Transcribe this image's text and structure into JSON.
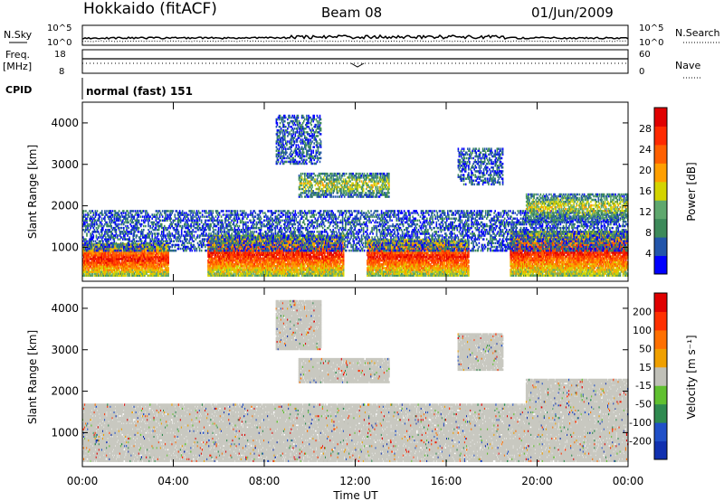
{
  "header": {
    "station": "Hokkaido (fitACF)",
    "beam": "Beam 08",
    "date": "01/Jun/2009"
  },
  "top_panels": {
    "nsky_label": "N.Sky",
    "nsky_ticks": [
      "10^5",
      "10^0"
    ],
    "nsearch_label": "N.Search",
    "nsearch_ticks": [
      "10^5",
      "10^0"
    ],
    "freq_label_1": "Freq.",
    "freq_label_2": "[MHz]",
    "freq_ticks": [
      "18",
      "8"
    ],
    "nave_label": "Nave",
    "nave_ticks": [
      "60",
      "0"
    ],
    "cpid_label": "CPID",
    "cpid_value": "normal (fast) 151"
  },
  "colors": {
    "power_scale": [
      "#0000ff",
      "#2255aa",
      "#3d8a5a",
      "#5fa86e",
      "#d4d400",
      "#ff9f00",
      "#ff6000",
      "#ff2a00",
      "#e00000"
    ],
    "velocity_scale": [
      "#1030b0",
      "#2050c8",
      "#2f8a50",
      "#60c030",
      "#c0c0b8",
      "#f0a000",
      "#ff7000",
      "#ff3000",
      "#e00000"
    ],
    "ground_scatter": "#c8c8c0"
  },
  "chart_data": [
    {
      "type": "heatmap",
      "panel": "power",
      "ylabel": "Slant Range [km]",
      "ylim": [
        180,
        4500
      ],
      "yticks": [
        "1000",
        "2000",
        "3000",
        "4000"
      ],
      "xlim_hours": [
        0,
        24
      ],
      "colorbar_label": "Power [dB]",
      "colorbar_ticks": [
        "28",
        "24",
        "20",
        "16",
        "12",
        "8",
        "4"
      ],
      "scatter_regions": [
        {
          "t0": 0,
          "t1": 3.8,
          "r0": 300,
          "r1": 1100,
          "level": "high"
        },
        {
          "t0": 5.5,
          "t1": 11.5,
          "r0": 300,
          "r1": 1300,
          "level": "high"
        },
        {
          "t0": 12.5,
          "t1": 17.0,
          "r0": 300,
          "r1": 1200,
          "level": "high"
        },
        {
          "t0": 18.8,
          "t1": 24,
          "r0": 300,
          "r1": 1400,
          "level": "high"
        },
        {
          "t0": 0,
          "t1": 24,
          "r0": 900,
          "r1": 1900,
          "level": "low"
        },
        {
          "t0": 9.5,
          "t1": 13.5,
          "r0": 2200,
          "r1": 2800,
          "level": "mid"
        },
        {
          "t0": 8.5,
          "t1": 10.5,
          "r0": 3000,
          "r1": 4200,
          "level": "low"
        },
        {
          "t0": 16.5,
          "t1": 18.5,
          "r0": 2500,
          "r1": 3400,
          "level": "low"
        },
        {
          "t0": 19.5,
          "t1": 24,
          "r0": 1600,
          "r1": 2300,
          "level": "mid"
        }
      ]
    },
    {
      "type": "heatmap",
      "panel": "velocity",
      "ylabel": "Slant Range [km]",
      "ylim": [
        180,
        4500
      ],
      "yticks": [
        "1000",
        "2000",
        "3000",
        "4000"
      ],
      "xlim_hours": [
        0,
        24
      ],
      "xlabel": "Time UT",
      "xticks": [
        "00:00",
        "04:00",
        "08:00",
        "12:00",
        "16:00",
        "20:00",
        "00:00"
      ],
      "colorbar_label": "Velocity [m s⁻¹]",
      "colorbar_ticks": [
        "200",
        "100",
        "50",
        "15",
        "-15",
        "-50",
        "-100",
        "-200"
      ],
      "scatter_regions": [
        {
          "t0": 0,
          "t1": 24,
          "r0": 300,
          "r1": 1700,
          "level": "ground"
        },
        {
          "t0": 9.5,
          "t1": 13.5,
          "r0": 2200,
          "r1": 2800,
          "level": "ground"
        },
        {
          "t0": 8.5,
          "t1": 10.5,
          "r0": 3000,
          "r1": 4200,
          "level": "ground"
        },
        {
          "t0": 16.5,
          "t1": 18.5,
          "r0": 2500,
          "r1": 3400,
          "level": "ground"
        },
        {
          "t0": 19.5,
          "t1": 24,
          "r0": 1600,
          "r1": 2300,
          "level": "ground"
        }
      ]
    }
  ]
}
